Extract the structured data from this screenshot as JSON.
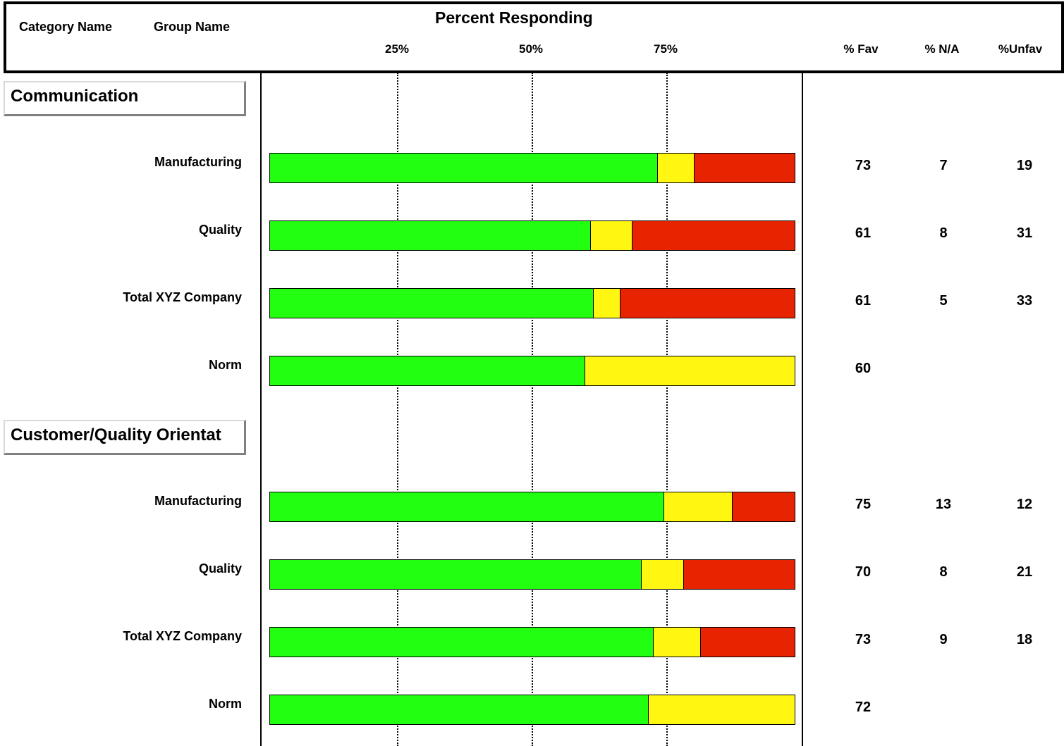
{
  "header": {
    "category_name": "Category Name",
    "group_name": "Group Name",
    "title": "Percent Responding",
    "ticks": [
      "25%",
      "50%",
      "75%"
    ],
    "col_fav": "% Fav",
    "col_na": "% N/A",
    "col_unfav": "%Unfav"
  },
  "colors": {
    "fav": "#22ff11",
    "na": "#fff711",
    "unfav": "#e82400"
  },
  "chart_data": {
    "type": "bar",
    "orientation": "horizontal-stacked",
    "xlim": [
      0,
      100
    ],
    "x_ticks": [
      25,
      50,
      75
    ],
    "series_keys": [
      "fav",
      "na",
      "unfav"
    ],
    "categories": [
      {
        "name": "Communication",
        "rows": [
          {
            "group": "Manufacturing",
            "fav": 73,
            "na": 7,
            "unfav": 19,
            "fav_label": "73",
            "na_label": "7",
            "unfav_label": "19"
          },
          {
            "group": "Quality",
            "fav": 61,
            "na": 8,
            "unfav": 31,
            "fav_label": "61",
            "na_label": "8",
            "unfav_label": "31"
          },
          {
            "group": "Total XYZ Company",
            "fav": 61,
            "na": 5,
            "unfav": 33,
            "fav_label": "61",
            "na_label": "5",
            "unfav_label": "33"
          },
          {
            "group": "Norm",
            "fav": 60,
            "na": 40,
            "unfav": 0,
            "fav_label": "60",
            "na_label": "",
            "unfav_label": ""
          }
        ]
      },
      {
        "name": "Customer/Quality Orientat",
        "rows": [
          {
            "group": "Manufacturing",
            "fav": 75,
            "na": 13,
            "unfav": 12,
            "fav_label": "75",
            "na_label": "13",
            "unfav_label": "12"
          },
          {
            "group": "Quality",
            "fav": 70,
            "na": 8,
            "unfav": 21,
            "fav_label": "70",
            "na_label": "8",
            "unfav_label": "21"
          },
          {
            "group": "Total XYZ Company",
            "fav": 73,
            "na": 9,
            "unfav": 18,
            "fav_label": "73",
            "na_label": "9",
            "unfav_label": "18"
          },
          {
            "group": "Norm",
            "fav": 72,
            "na": 28,
            "unfav": 0,
            "fav_label": "72",
            "na_label": "",
            "unfav_label": ""
          }
        ]
      }
    ]
  }
}
